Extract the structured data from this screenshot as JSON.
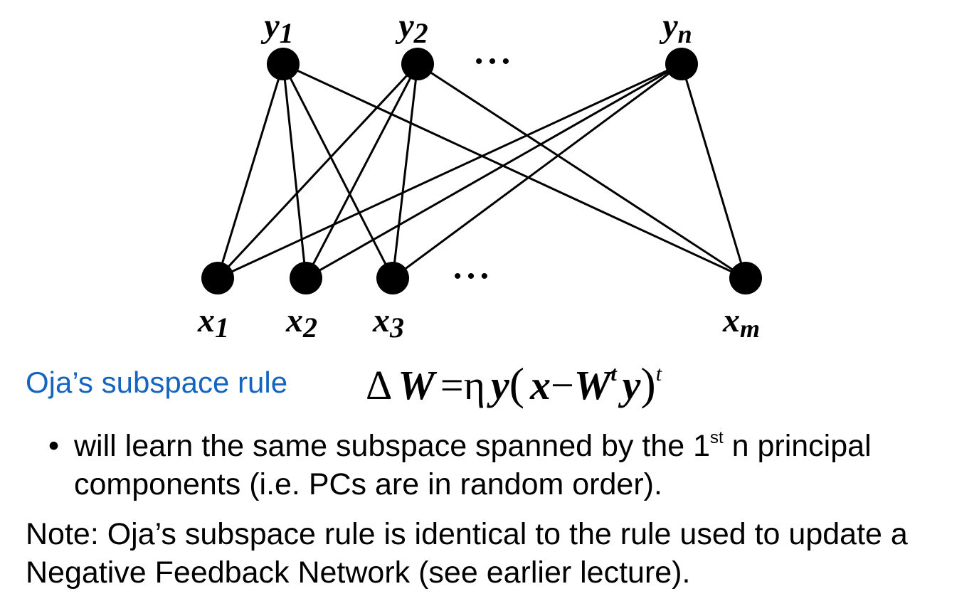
{
  "diagram": {
    "output_nodes": [
      {
        "id": "y1",
        "base": "y",
        "sub": "1"
      },
      {
        "id": "y2",
        "base": "y",
        "sub": "2"
      },
      {
        "id": "yn",
        "base": "y",
        "sub": "n"
      }
    ],
    "input_nodes": [
      {
        "id": "x1",
        "base": "x",
        "sub": "1"
      },
      {
        "id": "x2",
        "base": "x",
        "sub": "2"
      },
      {
        "id": "x3",
        "base": "x",
        "sub": "3"
      },
      {
        "id": "xm",
        "base": "x",
        "sub": "m"
      }
    ],
    "edges": [
      [
        "y1",
        "x1"
      ],
      [
        "y1",
        "x2"
      ],
      [
        "y1",
        "x3"
      ],
      [
        "y1",
        "xm"
      ],
      [
        "y2",
        "x1"
      ],
      [
        "y2",
        "x2"
      ],
      [
        "y2",
        "x3"
      ],
      [
        "y2",
        "xm"
      ],
      [
        "yn",
        "x1"
      ],
      [
        "yn",
        "x2"
      ],
      [
        "yn",
        "x3"
      ],
      [
        "yn",
        "xm"
      ]
    ],
    "ellipsis": "• • •"
  },
  "rule": {
    "name": "Oja’s subspace rule",
    "formula": {
      "delta": "Δ",
      "W": "W",
      "equals": "=",
      "eta": "η",
      "y": "y",
      "open_paren": "(",
      "x": "x",
      "minus": "−",
      "W2": "W",
      "t": "t",
      "y2": "y",
      "close_paren": ")",
      "t2": "t"
    }
  },
  "bullet": {
    "dot": "•",
    "text_before": "will learn the same subspace spanned by the 1",
    "superscript": "st",
    "text_after": " n principal components (i.e. PCs are in random order)."
  },
  "note": "Note: Oja’s subspace rule is identical to the rule used to update a Negative Feedback Network (see earlier lecture)."
}
